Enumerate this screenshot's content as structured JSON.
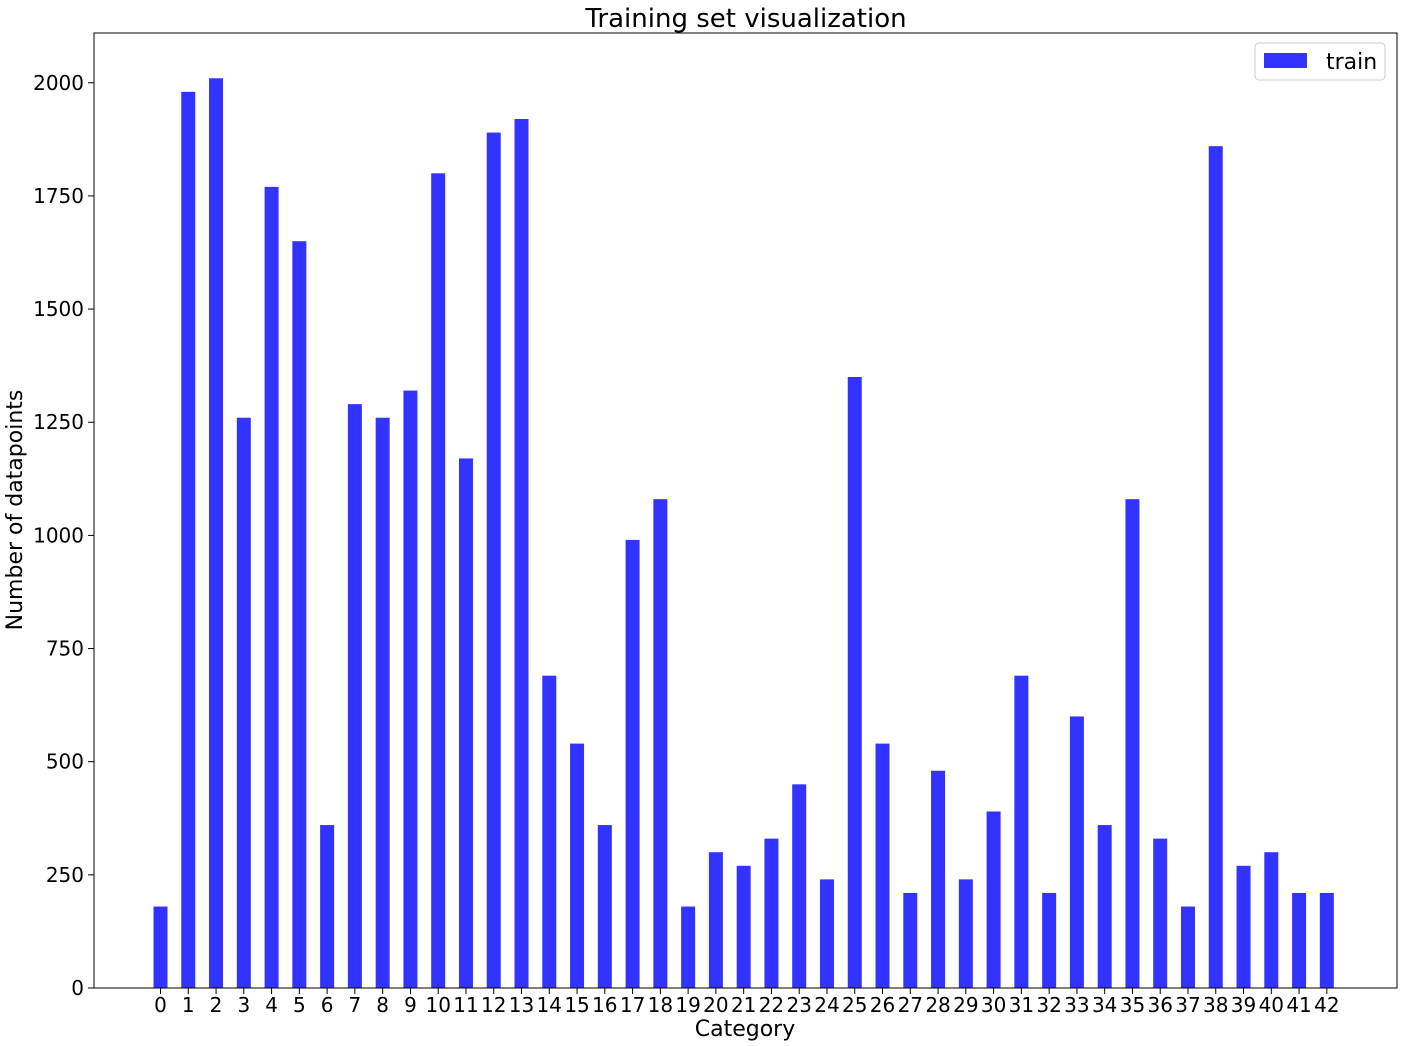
{
  "chart_data": {
    "type": "bar",
    "title": "Training set visualization",
    "xlabel": "Category",
    "ylabel": "Number of datapoints",
    "ylim": [
      0,
      2110
    ],
    "yticks": [
      0,
      250,
      500,
      750,
      1000,
      1250,
      1500,
      1750,
      2000
    ],
    "categories": [
      "0",
      "1",
      "2",
      "3",
      "4",
      "5",
      "6",
      "7",
      "8",
      "9",
      "10",
      "11",
      "12",
      "13",
      "14",
      "15",
      "16",
      "17",
      "18",
      "19",
      "20",
      "21",
      "22",
      "23",
      "24",
      "25",
      "26",
      "27",
      "28",
      "29",
      "30",
      "31",
      "32",
      "33",
      "34",
      "35",
      "36",
      "37",
      "38",
      "39",
      "40",
      "41",
      "42"
    ],
    "series": [
      {
        "name": "train",
        "color": "#3333ff",
        "values": [
          180,
          1980,
          2010,
          1260,
          1770,
          1650,
          360,
          1290,
          1260,
          1320,
          1800,
          1170,
          1890,
          1920,
          690,
          540,
          360,
          990,
          1080,
          180,
          300,
          270,
          330,
          450,
          240,
          1350,
          540,
          210,
          480,
          240,
          390,
          690,
          210,
          600,
          360,
          1080,
          330,
          180,
          1860,
          270,
          300,
          210,
          210
        ]
      }
    ],
    "legend": {
      "position": "top-right"
    },
    "grid": false
  }
}
